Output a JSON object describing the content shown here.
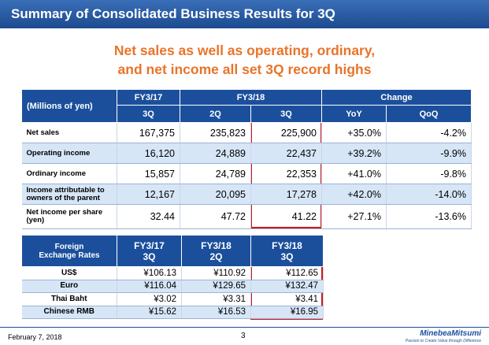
{
  "header": {
    "title": "Summary of Consolidated Business Results for 3Q"
  },
  "subtitle": [
    "Net sales as well as operating, ordinary,",
    "and net income all set 3Q record highs"
  ],
  "results_table": {
    "header_top": [
      "(Millions of yen)",
      "FY3/17",
      "FY3/18",
      "Change"
    ],
    "header_sub": [
      "3Q",
      "2Q",
      "3Q",
      "YoY",
      "QoQ"
    ],
    "rows": [
      [
        "Net sales",
        "167,375",
        "235,823",
        "225,900",
        "+35.0%",
        "-4.2%"
      ],
      [
        "Operating income",
        "16,120",
        "24,889",
        "22,437",
        "+39.2%",
        "-9.9%"
      ],
      [
        "Ordinary income",
        "15,857",
        "24,789",
        "22,353",
        "+41.0%",
        "-9.8%"
      ],
      [
        "Income attributable to owners of the parent",
        "12,167",
        "20,095",
        "17,278",
        "+42.0%",
        "-14.0%"
      ],
      [
        "Net income per share (yen)",
        "32.44",
        "47.72",
        "41.22",
        "+27.1%",
        "-13.6%"
      ]
    ]
  },
  "fx_table": {
    "header": [
      [
        "Foreign",
        "Exchange Rates"
      ],
      [
        "FY3/17",
        "3Q"
      ],
      [
        "FY3/18",
        "2Q"
      ],
      [
        "FY3/18",
        "3Q"
      ]
    ],
    "rows": [
      [
        "US$",
        "¥106.13",
        "¥110.92",
        "¥112.65"
      ],
      [
        "Euro",
        "¥116.04",
        "¥129.65",
        "¥132.47"
      ],
      [
        "Thai Baht",
        "¥3.02",
        "¥3.31",
        "¥3.41"
      ],
      [
        "Chinese RMB",
        "¥15.62",
        "¥16.53",
        "¥16.95"
      ]
    ]
  },
  "footer": {
    "date": "February 7, 2018",
    "page": "3",
    "logo": "MinebeaMitsumi",
    "tagline": "Passion to Create Value through Difference"
  }
}
